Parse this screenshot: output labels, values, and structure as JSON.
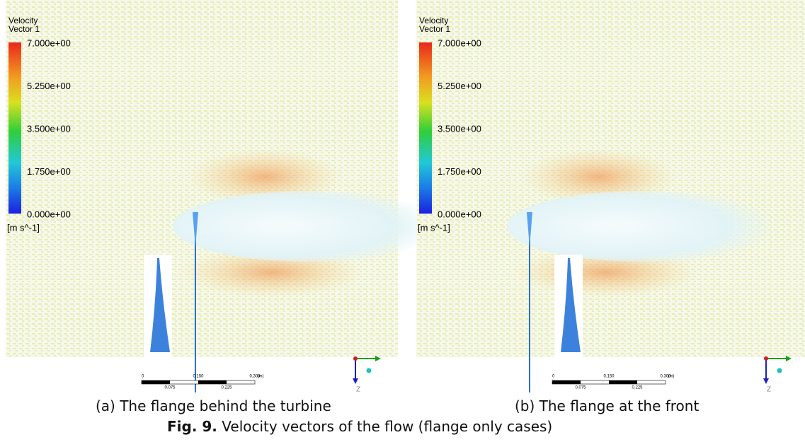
{
  "panels": [
    {
      "legend": {
        "title": "Velocity",
        "subtitle": "Vector 1",
        "ticks": [
          "7.000e+00",
          "5.250e+00",
          "3.500e+00",
          "1.750e+00",
          "0.000e+00"
        ],
        "unit": "[m s^-1]"
      },
      "scale": {
        "top": [
          "0",
          "0.150",
          "0.300",
          "(m)"
        ],
        "bottom": [
          "0.075",
          "0.225"
        ]
      },
      "axis": "Z",
      "caption": "(a) The flange behind the turbine"
    },
    {
      "legend": {
        "title": "Velocity",
        "subtitle": "Vector 1",
        "ticks": [
          "7.000e+00",
          "5.250e+00",
          "3.500e+00",
          "1.750e+00",
          "0.000e+00"
        ],
        "unit": "[m s^-1]"
      },
      "scale": {
        "top": [
          "0",
          "0.150",
          "0.300",
          "(m)"
        ],
        "bottom": [
          "0.075",
          "0.225"
        ]
      },
      "axis": "Z",
      "caption": "(b) The flange at the front"
    }
  ],
  "figure": {
    "label": "Fig. 9.",
    "text": "Velocity vectors of the flow (flange only cases)"
  }
}
